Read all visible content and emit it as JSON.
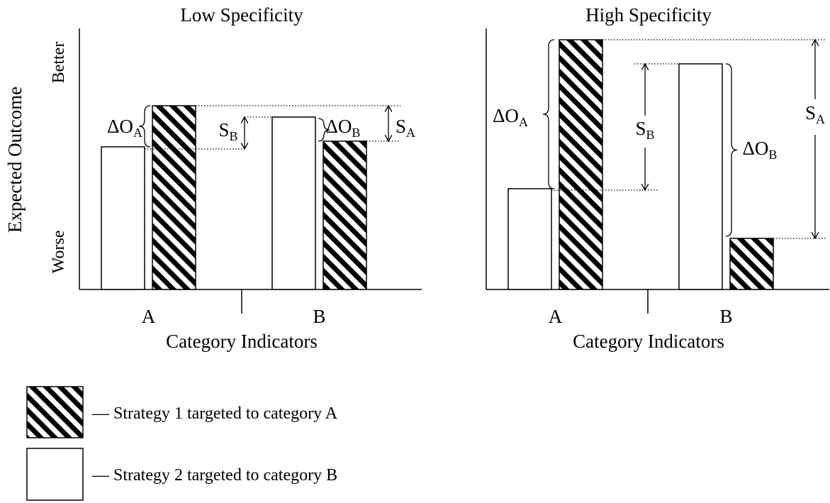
{
  "y_label": "Expected Outcome",
  "y_top": "Better",
  "y_bottom": "Worse",
  "panels": [
    {
      "title": "Low Specificity",
      "categories": [
        "A",
        "B"
      ],
      "x_label": "Category Indicators",
      "annotations": [
        {
          "main": "ΔO",
          "sub": "A"
        },
        {
          "main": "S",
          "sub": "B"
        },
        {
          "main": "ΔO",
          "sub": "B"
        },
        {
          "main": "S",
          "sub": "A"
        }
      ]
    },
    {
      "title": "High Specificity",
      "categories": [
        "A",
        "B"
      ],
      "x_label": "Category Indicators",
      "annotations": [
        {
          "main": "ΔO",
          "sub": "A"
        },
        {
          "main": "S",
          "sub": "B"
        },
        {
          "main": "ΔO",
          "sub": "B"
        },
        {
          "main": "S",
          "sub": "A"
        }
      ]
    }
  ],
  "legend": [
    {
      "text": "— Strategy 1 targeted to category A"
    },
    {
      "text": "— Strategy 2 targeted to category B"
    }
  ]
}
